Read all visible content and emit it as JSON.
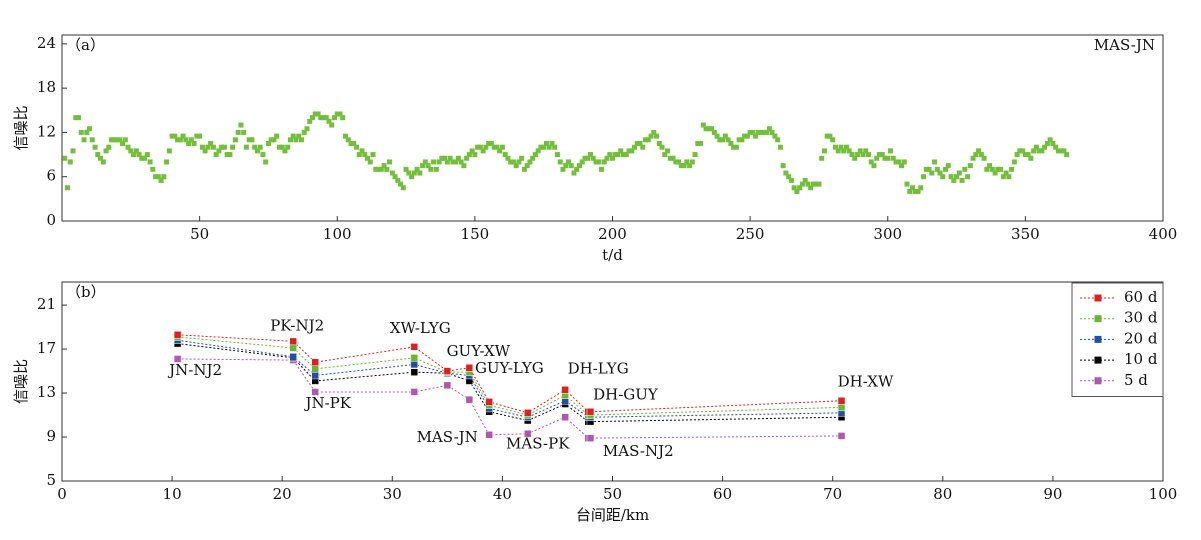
{
  "chart_data": [
    {
      "type": "scatter",
      "panel_label": "（a）",
      "annotation": "MAS-JN",
      "y_label": "信噪比",
      "x_label": "t/d",
      "color": "#72bf3a",
      "xlim": [
        0,
        400
      ],
      "xticks": [
        50,
        100,
        150,
        200,
        250,
        300,
        350,
        400
      ],
      "ylim": [
        0,
        25.2
      ],
      "yticks": [
        0,
        6,
        12,
        18,
        24
      ],
      "x": [
        1,
        2,
        3,
        4,
        5,
        6,
        7,
        8,
        9,
        10,
        11,
        12,
        13,
        14,
        15,
        16,
        17,
        18,
        19,
        20,
        21,
        22,
        23,
        24,
        25,
        26,
        27,
        28,
        29,
        30,
        31,
        32,
        33,
        34,
        35,
        36,
        37,
        38,
        39,
        40,
        41,
        42,
        43,
        44,
        45,
        46,
        47,
        48,
        49,
        50,
        51,
        52,
        53,
        54,
        55,
        56,
        57,
        58,
        59,
        60,
        61,
        62,
        63,
        64,
        65,
        66,
        67,
        68,
        69,
        70,
        71,
        72,
        73,
        74,
        75,
        76,
        77,
        78,
        79,
        80,
        81,
        82,
        83,
        84,
        85,
        86,
        87,
        88,
        89,
        90,
        91,
        92,
        93,
        94,
        95,
        96,
        97,
        98,
        99,
        100,
        101,
        102,
        103,
        104,
        105,
        106,
        107,
        108,
        109,
        110,
        111,
        112,
        113,
        114,
        115,
        116,
        117,
        118,
        119,
        120,
        121,
        122,
        123,
        124,
        125,
        126,
        127,
        128,
        129,
        130,
        131,
        132,
        133,
        134,
        135,
        136,
        137,
        138,
        139,
        140,
        141,
        142,
        143,
        144,
        145,
        146,
        147,
        148,
        149,
        150,
        151,
        152,
        153,
        154,
        155,
        156,
        157,
        158,
        159,
        160,
        161,
        162,
        163,
        164,
        165,
        166,
        167,
        168,
        169,
        170,
        171,
        172,
        173,
        174,
        175,
        176,
        177,
        178,
        179,
        180,
        181,
        182,
        183,
        184,
        185,
        186,
        187,
        188,
        189,
        190,
        191,
        192,
        193,
        194,
        195,
        196,
        197,
        198,
        199,
        200,
        201,
        202,
        203,
        204,
        205,
        206,
        207,
        208,
        209,
        210,
        211,
        212,
        213,
        214,
        215,
        216,
        217,
        218,
        219,
        220,
        221,
        222,
        223,
        224,
        225,
        226,
        227,
        228,
        229,
        230,
        231,
        232,
        233,
        234,
        235,
        236,
        237,
        238,
        239,
        240,
        241,
        242,
        243,
        244,
        245,
        246,
        247,
        248,
        249,
        250,
        251,
        252,
        253,
        254,
        255,
        256,
        257,
        258,
        259,
        260,
        261,
        262,
        263,
        264,
        265,
        266,
        267,
        268,
        269,
        270,
        271,
        272,
        273,
        274,
        275,
        276,
        277,
        278,
        279,
        280,
        281,
        282,
        283,
        284,
        285,
        286,
        287,
        288,
        289,
        290,
        291,
        292,
        293,
        294,
        295,
        296,
        297,
        298,
        299,
        300,
        301,
        302,
        303,
        304,
        305,
        306,
        307,
        308,
        309,
        310,
        311,
        312,
        313,
        314,
        315,
        316,
        317,
        318,
        319,
        320,
        321,
        322,
        323,
        324,
        325,
        326,
        327,
        328,
        329,
        330,
        331,
        332,
        333,
        334,
        335,
        336,
        337,
        338,
        339,
        340,
        341,
        342,
        343,
        344,
        345,
        346,
        347,
        348,
        349,
        350,
        351,
        352,
        353,
        354,
        355,
        356,
        357,
        358,
        359,
        360,
        361,
        362,
        363,
        364,
        365
      ],
      "values": [
        8.5,
        4.5,
        8,
        9.5,
        14,
        14,
        12,
        11,
        12,
        12.5,
        11,
        10,
        9,
        8.5,
        8,
        9.5,
        10,
        11,
        11,
        11,
        11,
        10.5,
        11,
        10,
        9.5,
        9,
        9.5,
        9,
        8.5,
        8.5,
        9,
        8,
        7,
        6,
        6,
        5.5,
        6,
        8,
        9.5,
        11.5,
        11.5,
        11,
        11,
        11.5,
        11,
        10.5,
        11,
        10.5,
        11.5,
        11.5,
        10,
        9.5,
        10,
        10.5,
        10,
        9,
        9.5,
        10,
        10,
        9,
        9,
        10,
        11,
        12,
        13,
        12,
        10,
        11,
        11,
        10,
        9.5,
        10,
        9,
        8,
        10.5,
        11,
        11,
        11.5,
        10,
        10,
        9.5,
        10,
        11,
        11.5,
        11,
        11.5,
        11,
        12,
        12.5,
        13.5,
        14,
        14.5,
        14.5,
        14,
        14,
        14,
        13.5,
        13,
        14,
        14.5,
        14.5,
        14,
        11.5,
        11,
        10.5,
        10.5,
        10,
        9,
        9.5,
        9,
        8.5,
        8,
        9,
        7,
        7,
        7,
        7.5,
        7,
        8,
        6.5,
        6,
        5.5,
        5,
        4.5,
        7,
        6.5,
        6,
        6.5,
        7,
        6.5,
        7.5,
        8,
        7.5,
        7,
        8,
        7,
        8,
        8.5,
        8.5,
        8,
        8.5,
        8,
        8,
        8.5,
        8,
        7.5,
        8.5,
        9,
        9.5,
        9,
        10,
        10,
        9.5,
        10,
        10.5,
        10.5,
        10,
        10,
        9.5,
        10,
        9,
        8.5,
        8,
        8,
        7.5,
        8,
        8.5,
        7,
        7.5,
        8,
        8.5,
        9,
        9.5,
        10,
        10,
        10.5,
        10,
        10.5,
        10,
        9,
        8,
        7,
        7.5,
        8,
        7.5,
        6.5,
        7,
        7.5,
        8,
        8.5,
        8.5,
        9,
        8.5,
        8,
        8,
        7,
        8,
        8.5,
        9,
        8.5,
        9,
        9,
        9.5,
        9,
        9,
        9.5,
        9.5,
        10,
        10.5,
        10.5,
        10,
        11,
        11,
        11.5,
        12,
        11.5,
        10.5,
        10,
        9,
        9.5,
        8.5,
        8.5,
        8,
        8,
        7.5,
        7.5,
        8,
        7.5,
        8,
        9,
        10.5,
        10.5,
        13,
        12.5,
        12.5,
        12.5,
        12,
        11.5,
        11,
        11,
        11.5,
        11,
        10.5,
        10,
        10,
        11,
        11,
        11.5,
        11.5,
        12,
        12,
        11.5,
        12,
        12,
        12,
        12,
        12.5,
        12,
        11.5,
        11,
        10,
        7.5,
        6.5,
        6,
        5.5,
        4.5,
        4,
        4.5,
        5,
        5.5,
        5,
        4.5,
        5,
        5,
        5,
        8.5,
        9.5,
        11.5,
        11.5,
        11,
        10,
        9.5,
        10,
        9.5,
        10,
        9.5,
        9,
        8.5,
        9,
        9.5,
        9,
        9.5,
        9,
        8,
        7.5,
        8.5,
        9,
        9,
        8.5,
        8.5,
        9.5,
        8.5,
        8,
        8,
        7.5,
        8,
        5,
        4,
        4.5,
        4,
        4,
        4.5,
        6,
        7,
        7,
        6.5,
        8,
        7,
        6.5,
        6,
        7,
        7.5,
        6,
        5.5,
        6,
        6.5,
        5.5,
        7,
        6,
        7.5,
        8.5,
        9,
        9.5,
        9,
        8.5,
        7,
        7.5,
        7,
        6.5,
        7,
        7,
        6,
        6.5,
        6,
        7,
        8,
        9,
        9.5,
        9.5,
        9,
        9,
        8.5,
        9.5,
        10,
        9.5,
        9.5,
        10,
        10.5,
        11,
        10.5,
        10,
        9.5,
        9.5,
        9.5,
        9
      ]
    },
    {
      "type": "line",
      "panel_label": "（b）",
      "y_label": "信噪比",
      "x_label": "台间距/km",
      "legend": "upper right",
      "xlim": [
        0,
        100
      ],
      "xticks": [
        0,
        10,
        20,
        30,
        40,
        50,
        60,
        70,
        80,
        90,
        100
      ],
      "ylim": [
        5,
        23.1
      ],
      "yticks": [
        5,
        9,
        13,
        17,
        21
      ],
      "x": [
        10.5,
        21,
        23,
        32,
        35,
        37,
        38.8,
        42.3,
        45.7,
        47.8,
        48,
        70.8
      ],
      "point_labels": [
        "JN-NJ2",
        "PK-NJ2",
        "JN-PK",
        "XW-LYG",
        "GUY-XW",
        "GUY-LYG",
        "MAS-JN",
        "MAS-PK",
        "DH-LYG",
        "MAS-NJ2",
        "DH-GUY",
        "DH-XW"
      ],
      "series": [
        {
          "name": "60 d",
          "color": "#e02020",
          "values": [
            18.3,
            17.7,
            15.8,
            17.2,
            15.0,
            15.3,
            12.2,
            11.2,
            13.3,
            11.3,
            11.3,
            12.3
          ]
        },
        {
          "name": "30 d",
          "color": "#6ab72e",
          "values": [
            18.1,
            17.1,
            15.2,
            16.2,
            14.9,
            14.9,
            11.9,
            11.0,
            12.8,
            11.0,
            11.0,
            11.7
          ]
        },
        {
          "name": "20 d",
          "color": "#1f4fa8",
          "values": [
            17.8,
            16.3,
            14.6,
            15.6,
            14.8,
            14.6,
            11.6,
            10.8,
            12.3,
            10.8,
            10.8,
            11.2
          ]
        },
        {
          "name": "10 d",
          "color": "#000000",
          "values": [
            17.5,
            16.2,
            14.1,
            14.9,
            14.8,
            14.1,
            11.3,
            10.5,
            12.0,
            10.4,
            10.4,
            10.8
          ]
        },
        {
          "name": "5 d",
          "color": "#b056b0",
          "values": [
            16.1,
            16.0,
            13.1,
            13.1,
            13.7,
            12.4,
            9.2,
            9.3,
            10.8,
            8.9,
            8.9,
            9.1
          ]
        }
      ]
    }
  ]
}
